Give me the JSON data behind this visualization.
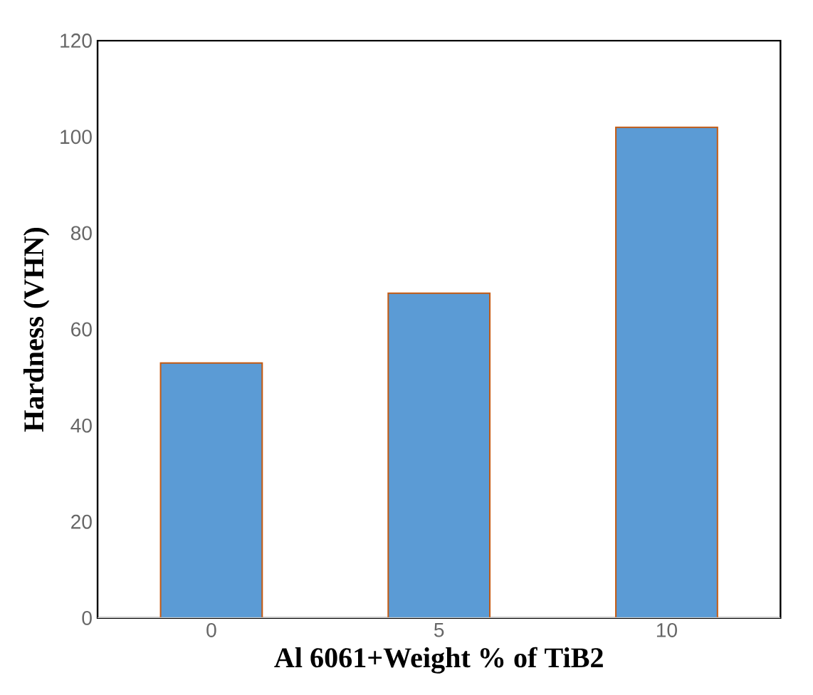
{
  "chart_data": {
    "type": "bar",
    "xlabel": "Al 6061+Weight % of TiB2",
    "ylabel": "Hardness (VHN)",
    "categories": [
      "0",
      "5",
      "10"
    ],
    "series": [
      {
        "color": "#5b9bd5",
        "values": [
          53,
          67.5,
          102
        ]
      }
    ],
    "ylim": [
      0,
      120
    ],
    "yticks": [
      0,
      20,
      40,
      60,
      80,
      100,
      120
    ],
    "grid": false
  }
}
